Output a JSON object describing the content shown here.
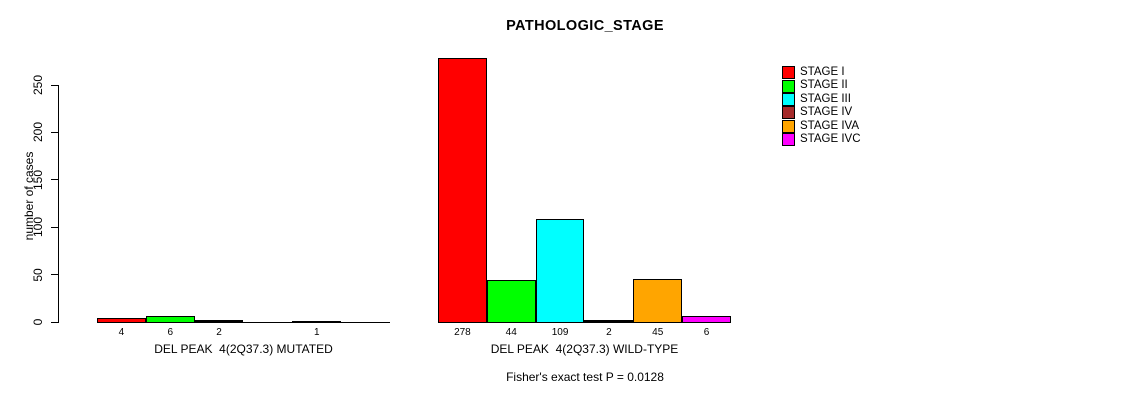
{
  "chart_data": {
    "type": "bar",
    "title": "PATHOLOGIC_STAGE",
    "ylabel": "number of cases",
    "subtitle": "Fisher's exact test P = 0.0128",
    "categories": [
      "DEL PEAK  4(2Q37.3) MUTATED",
      "DEL PEAK  4(2Q37.3) WILD-TYPE"
    ],
    "yticks": [
      0,
      50,
      100,
      150,
      200,
      250
    ],
    "ylim": [
      0,
      278
    ],
    "grid": false,
    "legend_position": "top-right",
    "series": [
      {
        "name": "STAGE I",
        "color": "#FF0000",
        "values": [
          4,
          278
        ]
      },
      {
        "name": "STAGE II",
        "color": "#00FF00",
        "values": [
          6,
          44
        ]
      },
      {
        "name": "STAGE III",
        "color": "#00FFFF",
        "values": [
          2,
          109
        ]
      },
      {
        "name": "STAGE IV",
        "color": "#A52A2A",
        "values": [
          0,
          2
        ]
      },
      {
        "name": "STAGE IVA",
        "color": "#FFA500",
        "values": [
          1,
          45
        ]
      },
      {
        "name": "STAGE IVC",
        "color": "#FF00FF",
        "values": [
          0,
          6
        ]
      }
    ]
  }
}
